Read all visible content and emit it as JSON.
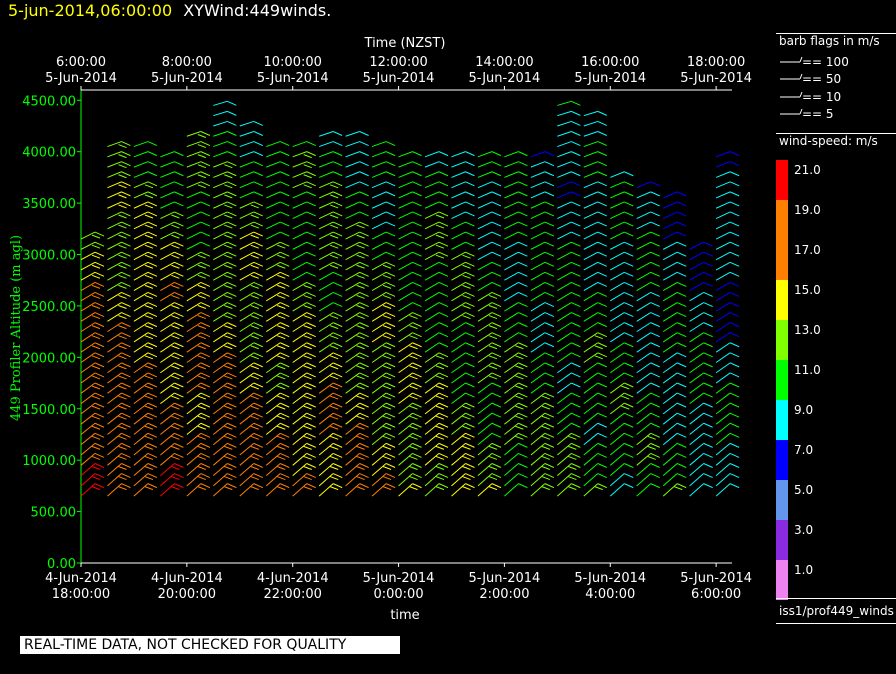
{
  "header": {
    "timestamp": "5-jun-2014,06:00:00",
    "title": "XYWind:449winds."
  },
  "quality_notice": "REAL-TIME DATA, NOT CHECKED FOR QUALITY",
  "barb_legend": {
    "title": "barb flags in m/s",
    "entries": [
      "== 100",
      "== 50",
      "== 10",
      "== 5"
    ]
  },
  "colorbar": {
    "title": "wind-speed: m/s",
    "labels": [
      "21.0",
      "19.0",
      "17.0",
      "15.0",
      "13.0",
      "11.0",
      "9.0",
      "7.0",
      "5.0",
      "3.0",
      "1.0"
    ],
    "colors": [
      "#ff0000",
      "#ff8000",
      "#ff8000",
      "#ffff00",
      "#80ff00",
      "#00ff00",
      "#00ffff",
      "#0000ff",
      "#6495ed",
      "#8a2be2",
      "#ee82ee"
    ]
  },
  "footer_label": "iss1/prof449_winds",
  "chart_data": {
    "type": "wind-barb",
    "top_axis": {
      "label": "Time (NZST)",
      "ticks": [
        {
          "time": "6:00:00",
          "date": "5-Jun-2014"
        },
        {
          "time": "8:00:00",
          "date": "5-Jun-2014"
        },
        {
          "time": "10:00:00",
          "date": "5-Jun-2014"
        },
        {
          "time": "12:00:00",
          "date": "5-Jun-2014"
        },
        {
          "time": "14:00:00",
          "date": "5-Jun-2014"
        },
        {
          "time": "16:00:00",
          "date": "5-Jun-2014"
        },
        {
          "time": "18:00:00",
          "date": "5-Jun-2014"
        }
      ]
    },
    "bottom_axis": {
      "label": "time",
      "ticks": [
        {
          "date": "4-Jun-2014",
          "time": "18:00:00"
        },
        {
          "date": "4-Jun-2014",
          "time": "20:00:00"
        },
        {
          "date": "4-Jun-2014",
          "time": "22:00:00"
        },
        {
          "date": "5-Jun-2014",
          "time": "0:00:00"
        },
        {
          "date": "5-Jun-2014",
          "time": "2:00:00"
        },
        {
          "date": "5-Jun-2014",
          "time": "4:00:00"
        },
        {
          "date": "5-Jun-2014",
          "time": "6:00:00"
        }
      ]
    },
    "y_axis": {
      "label": "449 Profiler Altitude (m agl)",
      "ticks": [
        "0.00",
        "500.00",
        "1000.00",
        "1500.00",
        "2000.00",
        "2500.00",
        "3000.00",
        "3500.00",
        "4000.00",
        "4500.00"
      ],
      "ylim": [
        0,
        4600
      ],
      "color": "#00ff00"
    },
    "profiles": {
      "time_hours_utc_from_18": [
        0,
        0.5,
        1,
        1.5,
        2,
        2.5,
        3,
        3.5,
        4,
        4.5,
        5,
        5.5,
        6,
        6.5,
        7,
        7.5,
        8,
        8.5,
        9,
        9.5,
        10,
        10.5,
        11,
        11.5,
        12
      ],
      "altitude_start_m": 650,
      "altitude_step_m": 100,
      "altitude_top_m": [
        3200,
        4100,
        4100,
        3950,
        4200,
        4500,
        4250,
        4100,
        4100,
        4200,
        4150,
        4050,
        4000,
        4000,
        4000,
        3950,
        3950,
        3950,
        4500,
        4400,
        3800,
        3700,
        3550,
        3050,
        3950
      ]
    }
  }
}
